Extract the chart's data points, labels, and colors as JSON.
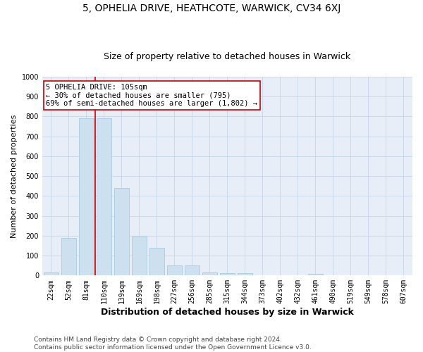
{
  "title1": "5, OPHELIA DRIVE, HEATHCOTE, WARWICK, CV34 6XJ",
  "title2": "Size of property relative to detached houses in Warwick",
  "xlabel": "Distribution of detached houses by size in Warwick",
  "ylabel": "Number of detached properties",
  "categories": [
    "22sqm",
    "52sqm",
    "81sqm",
    "110sqm",
    "139sqm",
    "169sqm",
    "198sqm",
    "227sqm",
    "256sqm",
    "285sqm",
    "315sqm",
    "344sqm",
    "373sqm",
    "402sqm",
    "432sqm",
    "461sqm",
    "490sqm",
    "519sqm",
    "549sqm",
    "578sqm",
    "607sqm"
  ],
  "values": [
    15,
    190,
    790,
    790,
    440,
    195,
    140,
    50,
    50,
    15,
    12,
    12,
    0,
    0,
    0,
    10,
    0,
    0,
    0,
    0,
    0
  ],
  "bar_color": "#cce0f0",
  "bar_edge_color": "#a0c4dc",
  "bar_width": 0.85,
  "vline_color": "#cc0000",
  "annotation_line1": "5 OPHELIA DRIVE: 105sqm",
  "annotation_line2": "← 30% of detached houses are smaller (795)",
  "annotation_line3": "69% of semi-detached houses are larger (1,802) →",
  "annotation_box_facecolor": "#ffffff",
  "annotation_box_edgecolor": "#cc0000",
  "ylim": [
    0,
    1000
  ],
  "yticks": [
    0,
    100,
    200,
    300,
    400,
    500,
    600,
    700,
    800,
    900,
    1000
  ],
  "grid_color": "#c8d4e8",
  "background_color": "#e8eef8",
  "footer_line1": "Contains HM Land Registry data © Crown copyright and database right 2024.",
  "footer_line2": "Contains public sector information licensed under the Open Government Licence v3.0.",
  "title1_fontsize": 10,
  "title2_fontsize": 9,
  "xlabel_fontsize": 9,
  "ylabel_fontsize": 8,
  "tick_fontsize": 7,
  "footer_fontsize": 6.5,
  "annotation_fontsize": 7.5
}
